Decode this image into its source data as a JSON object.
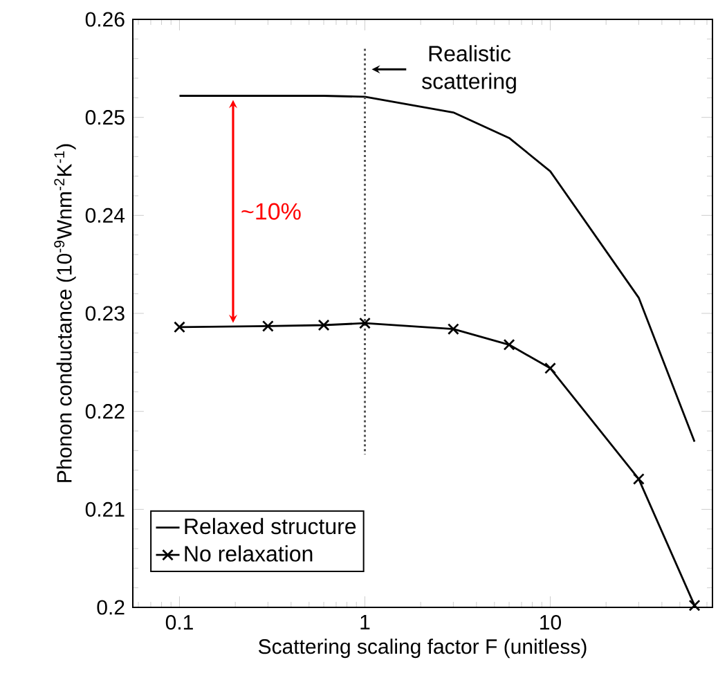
{
  "chart_data": {
    "type": "line",
    "xlabel": "Scattering scaling factor F (unitless)",
    "ylabel": "Phonon conductance (10$^{-9}$Wnm$^{-2}$K$^{-1}$)",
    "x": [
      0.1,
      0.3,
      0.6,
      1,
      3,
      6,
      10,
      30,
      60
    ],
    "series": [
      {
        "name": "Relaxed structure",
        "color": "#000000",
        "marker": "none",
        "values": [
          0.2522,
          0.2522,
          0.2522,
          0.2521,
          0.2505,
          0.2479,
          0.2445,
          0.2316,
          0.2169
        ]
      },
      {
        "name": "No relaxation",
        "color": "#000000",
        "marker": "cross",
        "values": [
          0.2286,
          0.2287,
          0.2288,
          0.229,
          0.2284,
          0.2268,
          0.2244,
          0.2131,
          0.2002
        ]
      }
    ],
    "log": "x",
    "xlim": [
      0.056,
      75
    ],
    "xticks": [
      0.1,
      1,
      10
    ],
    "ylim": [
      0.2,
      0.26
    ],
    "yticks": [
      0.2,
      0.21,
      0.22,
      0.23,
      0.24,
      0.25,
      0.26
    ],
    "ref_lines": [
      {
        "axis": "x",
        "value": 1,
        "label": "Realistic scattering",
        "line_style": "dotted",
        "color": "#555555"
      }
    ],
    "annotations": [
      "~10%"
    ],
    "legend": "bottom left",
    "grid": false,
    "line_style": "solid"
  }
}
